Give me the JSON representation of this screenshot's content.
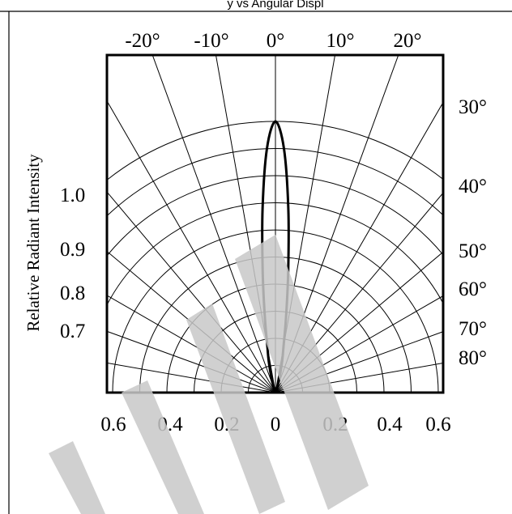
{
  "header": {
    "caption_fragment": "y vs Angular Displ"
  },
  "chart_data": {
    "type": "polar-radiation-pattern",
    "title": "",
    "ylabel": "Relative Radiant Intensity",
    "angle_labels_top": [
      "-20°",
      "-10°",
      "0°",
      "10°",
      "20°"
    ],
    "angle_labels_right": [
      "30°",
      "40°",
      "50°",
      "60°",
      "70°",
      "80°"
    ],
    "radial_labels_left": [
      "1.0",
      "0.9",
      "0.8",
      "0.7"
    ],
    "bottom_axis_labels": [
      "0.6",
      "0.4",
      "0.2",
      "0",
      "0.2",
      "0.4",
      "0.6"
    ],
    "angular_grid_deg": [
      -90,
      -80,
      -70,
      -60,
      -50,
      -40,
      -30,
      -20,
      -10,
      0,
      10,
      20,
      30,
      40,
      50,
      60,
      70,
      80,
      90
    ],
    "radial_grid": [
      0.1,
      0.2,
      0.3,
      0.4,
      0.5,
      0.6,
      0.7,
      0.8,
      0.9,
      1.0
    ],
    "radial_max": 1.0,
    "series": [
      {
        "angle_deg": [
          -20,
          -15,
          -12,
          -10,
          -8,
          -6,
          -4,
          -2,
          0,
          2,
          4,
          6,
          8,
          10,
          12,
          15,
          20
        ],
        "relative_intensity": [
          0.02,
          0.06,
          0.12,
          0.17,
          0.28,
          0.45,
          0.68,
          0.9,
          1.0,
          0.9,
          0.68,
          0.45,
          0.28,
          0.17,
          0.12,
          0.06,
          0.02
        ]
      }
    ],
    "colors": {
      "grid": "#000000",
      "curve": "#000000",
      "watermark": "#c8c8c8"
    }
  }
}
